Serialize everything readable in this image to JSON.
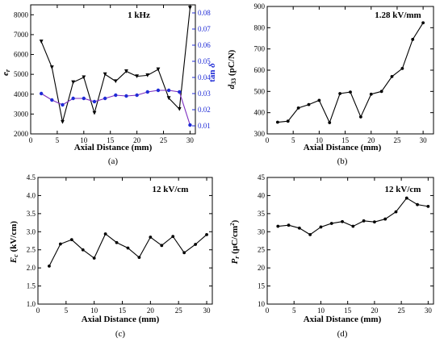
{
  "colors": {
    "line": "#000000",
    "tan_delta": "#7b2cbf",
    "right_axis": "#1f2bd6"
  },
  "chart_data": [
    {
      "type": "line",
      "annotation": "1 kHz",
      "caption": "(a)",
      "xlabel": "Axial Distance (mm)",
      "ylabel": "e_r",
      "ylabel_right": "tan δ",
      "xlim": [
        0,
        31
      ],
      "ylim": [
        2000,
        8500
      ],
      "ylim_right": [
        0.005,
        0.085
      ],
      "xticks": [
        0,
        5,
        10,
        15,
        20,
        25,
        30
      ],
      "yticks": [
        2000,
        3000,
        4000,
        5000,
        6000,
        7000,
        8000
      ],
      "yticks_right": [
        0.01,
        0.02,
        0.03,
        0.04,
        0.05,
        0.06,
        0.07,
        0.08
      ],
      "xticklabels": [
        "0",
        "5",
        "10",
        "15",
        "20",
        "25",
        "30"
      ],
      "yticklabels": [
        "2000",
        "3000",
        "4000",
        "5000",
        "6000",
        "7000",
        "8000"
      ],
      "yticklabels_right": [
        "0.01",
        "0.02",
        "0.03",
        "0.04",
        "0.05",
        "0.06",
        "0.07",
        "0.08"
      ],
      "x": [
        2,
        4,
        6,
        8,
        10,
        12,
        14,
        16,
        18,
        20,
        22,
        24,
        26,
        28,
        30
      ],
      "series": [
        {
          "axis": "left",
          "values": [
            6650,
            5350,
            2600,
            4600,
            4850,
            3050,
            5000,
            4650,
            5150,
            4900,
            4950,
            5250,
            3800,
            3250,
            8350
          ]
        },
        {
          "axis": "right",
          "values": [
            0.03,
            0.026,
            0.023,
            0.027,
            0.027,
            0.025,
            0.027,
            0.029,
            0.0285,
            0.029,
            0.031,
            0.032,
            0.032,
            0.031,
            0.0105
          ]
        }
      ]
    },
    {
      "type": "line",
      "annotation": "1.28 kV/mm",
      "caption": "(b)",
      "xlabel": "Axial Distance (mm)",
      "ylabel": "d33 (pC/N)",
      "xlim": [
        0,
        32
      ],
      "ylim": [
        300,
        900
      ],
      "xticks": [
        0,
        5,
        10,
        15,
        20,
        25,
        30
      ],
      "yticks": [
        300,
        400,
        500,
        600,
        700,
        800,
        900
      ],
      "xticklabels": [
        "0",
        "5",
        "10",
        "15",
        "20",
        "25",
        "30"
      ],
      "yticklabels": [
        "300",
        "400",
        "500",
        "600",
        "700",
        "800",
        "900"
      ],
      "x": [
        2,
        4,
        6,
        8,
        10,
        12,
        14,
        16,
        18,
        20,
        22,
        24,
        26,
        28,
        30
      ],
      "series": [
        {
          "values": [
            355,
            360,
            422,
            438,
            458,
            353,
            490,
            497,
            380,
            487,
            500,
            570,
            608,
            745,
            823
          ]
        }
      ]
    },
    {
      "type": "line",
      "annotation": "12 kV/cm",
      "caption": "(c)",
      "xlabel": "Axial Distance (mm)",
      "ylabel": "Ec (kV/cm)",
      "xlim": [
        0,
        31
      ],
      "ylim": [
        1.0,
        4.5
      ],
      "xticks": [
        0,
        5,
        10,
        15,
        20,
        25,
        30
      ],
      "yticks": [
        1.0,
        1.5,
        2.0,
        2.5,
        3.0,
        3.5,
        4.0,
        4.5
      ],
      "xticklabels": [
        "0",
        "5",
        "10",
        "15",
        "20",
        "25",
        "30"
      ],
      "yticklabels": [
        "1.0",
        "1.5",
        "2.0",
        "2.5",
        "3.0",
        "3.5",
        "4.0",
        "4.5"
      ],
      "x": [
        2,
        4,
        6,
        8,
        10,
        12,
        14,
        16,
        18,
        20,
        22,
        24,
        26,
        28,
        30
      ],
      "series": [
        {
          "values": [
            2.05,
            2.66,
            2.78,
            2.5,
            2.27,
            2.94,
            2.7,
            2.55,
            2.29,
            2.85,
            2.62,
            2.87,
            2.42,
            2.65,
            2.92
          ]
        }
      ]
    },
    {
      "type": "line",
      "annotation": "12 kV/cm",
      "caption": "(d)",
      "xlabel": "Axial Distance (mm)",
      "ylabel": "Pr (μC/cm2)",
      "xlim": [
        0,
        31
      ],
      "ylim": [
        10,
        45
      ],
      "xticks": [
        0,
        5,
        10,
        15,
        20,
        25,
        30
      ],
      "yticks": [
        10,
        15,
        20,
        25,
        30,
        35,
        40,
        45
      ],
      "xticklabels": [
        "0",
        "5",
        "10",
        "15",
        "20",
        "25",
        "30"
      ],
      "yticklabels": [
        "10",
        "15",
        "20",
        "25",
        "30",
        "35",
        "40",
        "45"
      ],
      "x": [
        2,
        4,
        6,
        8,
        10,
        12,
        14,
        16,
        18,
        20,
        22,
        24,
        26,
        28,
        30
      ],
      "series": [
        {
          "values": [
            31.5,
            31.8,
            31.0,
            29.2,
            31.3,
            32.3,
            32.8,
            31.5,
            33.0,
            32.7,
            33.5,
            35.5,
            39.3,
            37.5,
            37.0
          ]
        }
      ]
    }
  ]
}
